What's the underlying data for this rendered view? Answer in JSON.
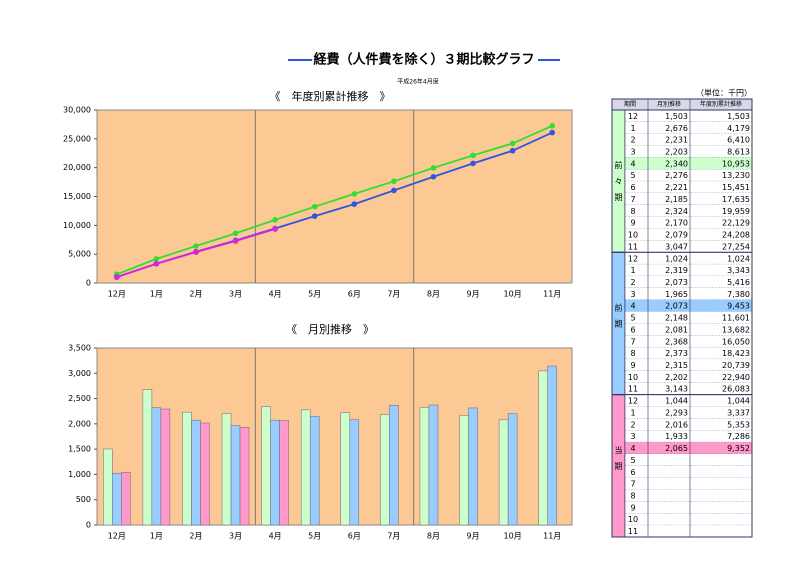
{
  "header": {
    "title": "経費（人件費を除く）３期比較グラフ",
    "subtitle": "平成26年4月度"
  },
  "chart_data": [
    {
      "type": "line",
      "title": "《　年度別累計推移　》",
      "categories": [
        "12月",
        "1月",
        "2月",
        "3月",
        "4月",
        "5月",
        "6月",
        "7月",
        "8月",
        "9月",
        "10月",
        "11月"
      ],
      "series": [
        {
          "color": "#33dd33",
          "values": [
            1503,
            4179,
            6410,
            8613,
            10953,
            13230,
            15451,
            17635,
            19959,
            22129,
            24208,
            27254
          ]
        },
        {
          "color": "#3355dd",
          "values": [
            1024,
            3343,
            5416,
            7380,
            9453,
            11601,
            13682,
            16050,
            18423,
            20739,
            22940,
            26083
          ]
        },
        {
          "color": "#dd22dd",
          "values": [
            1044,
            3337,
            5353,
            7286,
            9352,
            null,
            null,
            null,
            null,
            null,
            null,
            null
          ]
        }
      ],
      "ylim": [
        0,
        30000
      ],
      "yticks": [
        0,
        {
          "value": 5000,
          "label": "5,000"
        },
        {
          "value": 10000,
          "label": "10,000"
        },
        {
          "value": 15000,
          "label": "15,000"
        },
        {
          "value": 20000,
          "label": "20,000"
        },
        {
          "value": 25000,
          "label": "25,000"
        },
        {
          "value": 30000,
          "label": "30,000"
        }
      ],
      "grid": false
    },
    {
      "type": "bar",
      "title": "《　月別推移　》",
      "categories": [
        "12月",
        "1月",
        "2月",
        "3月",
        "4月",
        "5月",
        "6月",
        "7月",
        "8月",
        "9月",
        "10月",
        "11月"
      ],
      "series": [
        {
          "color": "#ccffcc",
          "values": [
            1503,
            2676,
            2231,
            2203,
            2340,
            2276,
            2221,
            2185,
            2324,
            2170,
            2079,
            3047
          ]
        },
        {
          "color": "#99ccff",
          "values": [
            1024,
            2319,
            2073,
            1965,
            2073,
            2148,
            2081,
            2368,
            2373,
            2315,
            2202,
            3143
          ]
        },
        {
          "color": "#ff99cc",
          "values": [
            1044,
            2293,
            2016,
            1933,
            2065,
            null,
            null,
            null,
            null,
            null,
            null,
            null
          ]
        }
      ],
      "ylim": [
        0,
        3500
      ],
      "yticks": [
        0,
        500,
        {
          "value": 1000,
          "label": "1,000"
        },
        {
          "value": 1500,
          "label": "1,500"
        },
        {
          "value": 2000,
          "label": "2,000"
        },
        {
          "value": 2500,
          "label": "2,500"
        },
        {
          "value": 3000,
          "label": "3,000"
        },
        {
          "value": 3500,
          "label": "3,500"
        }
      ],
      "grid": false
    }
  ],
  "table": {
    "unit": "（単位：千円）",
    "columns": [
      "期間",
      "月別推移",
      "年度別累計推移"
    ],
    "highlight_row": 4,
    "groups": [
      {
        "label": "前々期",
        "color": "#ccffcc",
        "highlight": "#ccffcc",
        "rows": [
          [
            12,
            "1,503",
            "1,503"
          ],
          [
            1,
            "2,676",
            "4,179"
          ],
          [
            2,
            "2,231",
            "6,410"
          ],
          [
            3,
            "2,203",
            "8,613"
          ],
          [
            4,
            "2,340",
            "10,953"
          ],
          [
            5,
            "2,276",
            "13,230"
          ],
          [
            6,
            "2,221",
            "15,451"
          ],
          [
            7,
            "2,185",
            "17,635"
          ],
          [
            8,
            "2,324",
            "19,959"
          ],
          [
            9,
            "2,170",
            "22,129"
          ],
          [
            10,
            "2,079",
            "24,208"
          ],
          [
            11,
            "3,047",
            "27,254"
          ]
        ]
      },
      {
        "label": "前期",
        "color": "#99ccff",
        "highlight": "#99ccff",
        "rows": [
          [
            12,
            "1,024",
            "1,024"
          ],
          [
            1,
            "2,319",
            "3,343"
          ],
          [
            2,
            "2,073",
            "5,416"
          ],
          [
            3,
            "1,965",
            "7,380"
          ],
          [
            4,
            "2,073",
            "9,453"
          ],
          [
            5,
            "2,148",
            "11,601"
          ],
          [
            6,
            "2,081",
            "13,682"
          ],
          [
            7,
            "2,368",
            "16,050"
          ],
          [
            8,
            "2,373",
            "18,423"
          ],
          [
            9,
            "2,315",
            "20,739"
          ],
          [
            10,
            "2,202",
            "22,940"
          ],
          [
            11,
            "3,143",
            "26,083"
          ]
        ]
      },
      {
        "label": "当期",
        "color": "#ff99cc",
        "highlight": "#ff99cc",
        "rows": [
          [
            12,
            "1,044",
            "1,044"
          ],
          [
            1,
            "2,293",
            "3,337"
          ],
          [
            2,
            "2,016",
            "5,353"
          ],
          [
            3,
            "1,933",
            "7,286"
          ],
          [
            4,
            "2,065",
            "9,352"
          ],
          [
            5
          ],
          [
            6
          ],
          [
            7
          ],
          [
            8
          ],
          [
            9
          ],
          [
            10
          ],
          [
            11
          ]
        ]
      }
    ]
  }
}
